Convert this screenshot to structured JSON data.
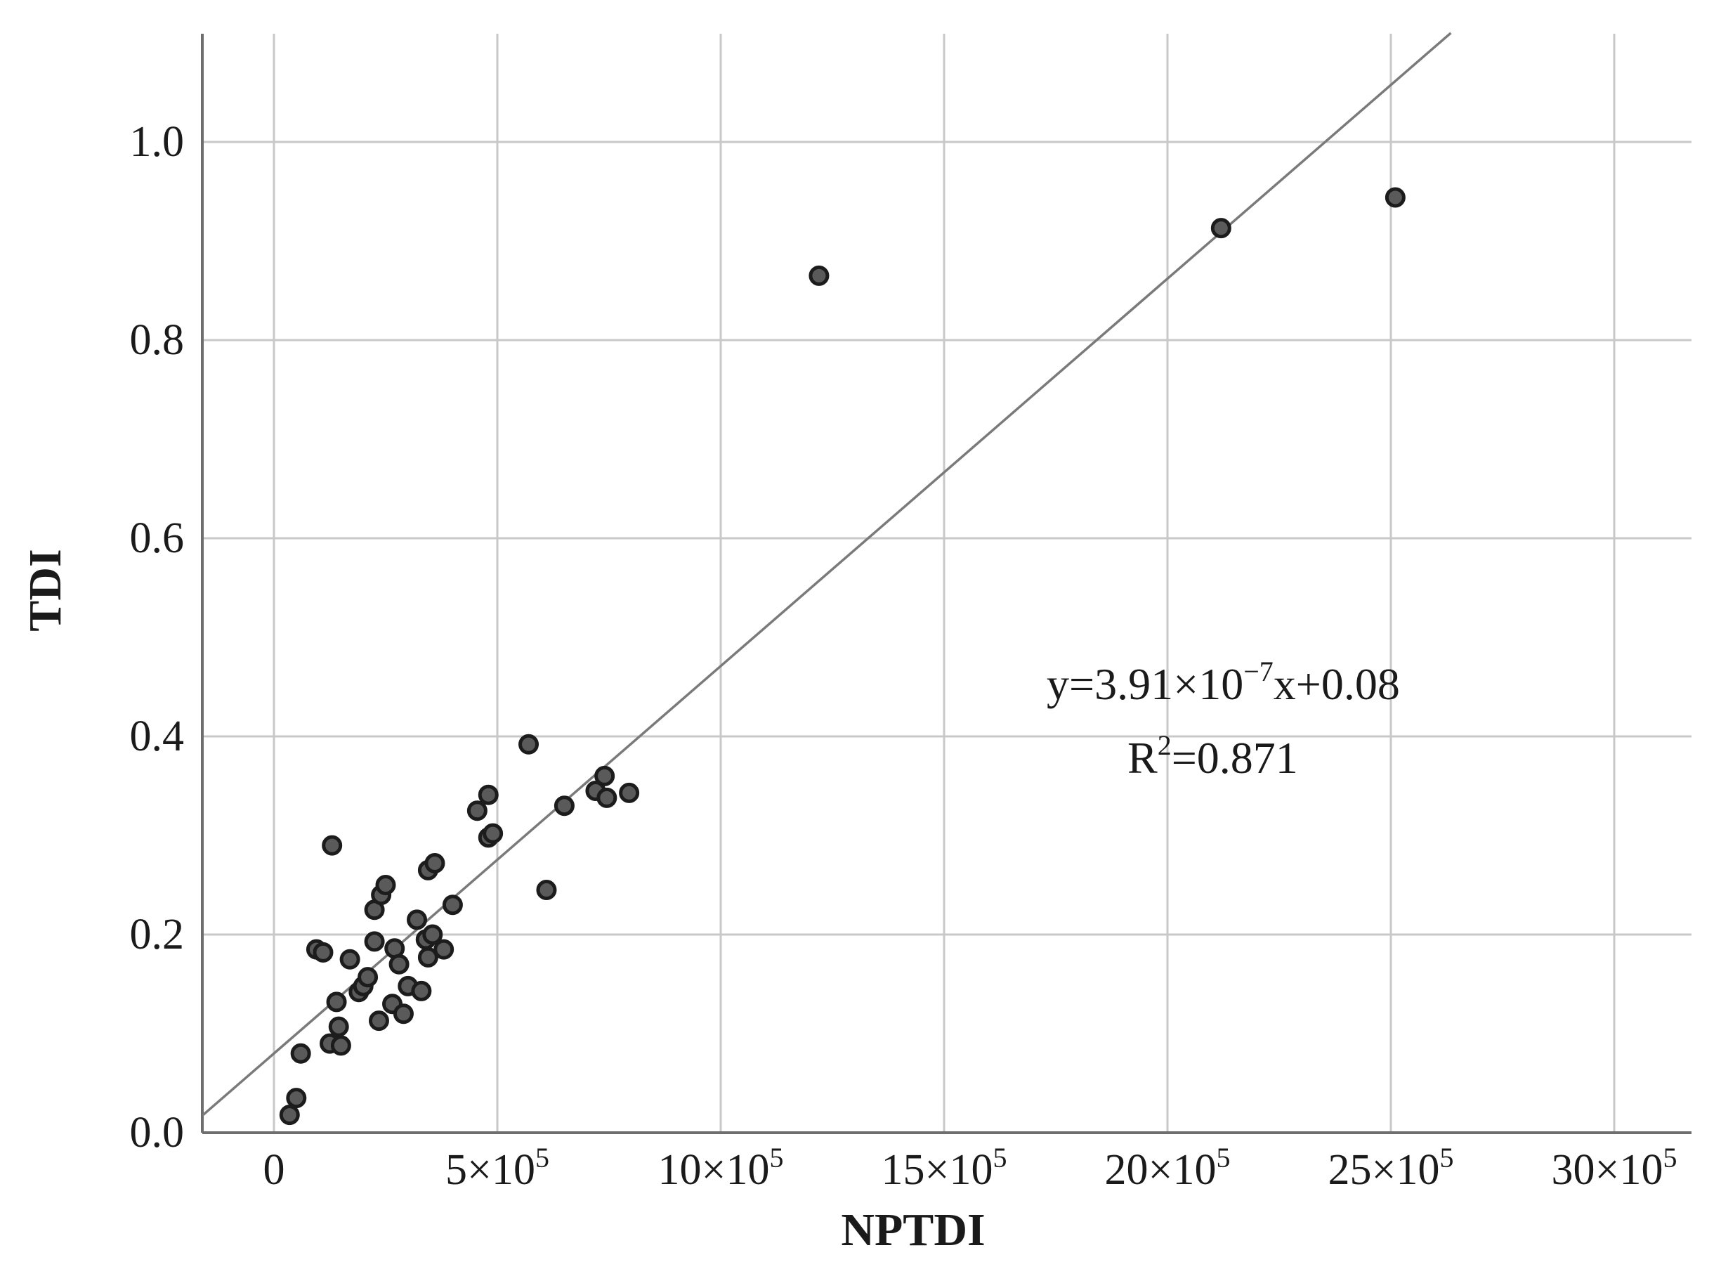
{
  "chart_data": {
    "type": "scatter",
    "title": "",
    "xlabel": "NPTDI",
    "ylabel": "TDI",
    "xlim": [
      -160000,
      3200000
    ],
    "ylim": [
      0,
      1.11
    ],
    "grid": true,
    "x_ticks": [
      {
        "value": 0,
        "label": "0",
        "sup": ""
      },
      {
        "value": 500000,
        "label": "5×10",
        "sup": "5"
      },
      {
        "value": 1000000,
        "label": "10×10",
        "sup": "5"
      },
      {
        "value": 1500000,
        "label": "15×10",
        "sup": "5"
      },
      {
        "value": 2000000,
        "label": "20×10",
        "sup": "5"
      },
      {
        "value": 2500000,
        "label": "25×10",
        "sup": "5"
      },
      {
        "value": 3000000,
        "label": "30×10",
        "sup": "5"
      }
    ],
    "y_ticks": [
      {
        "value": 0.0,
        "label": "0.0"
      },
      {
        "value": 0.2,
        "label": "0.2"
      },
      {
        "value": 0.4,
        "label": "0.4"
      },
      {
        "value": 0.6,
        "label": "0.6"
      },
      {
        "value": 0.8,
        "label": "0.8"
      },
      {
        "value": 1.0,
        "label": "1.0"
      }
    ],
    "points": [
      {
        "x": 35000,
        "y": 0.018
      },
      {
        "x": 50000,
        "y": 0.035
      },
      {
        "x": 60000,
        "y": 0.08
      },
      {
        "x": 95000,
        "y": 0.185
      },
      {
        "x": 110000,
        "y": 0.182
      },
      {
        "x": 130000,
        "y": 0.29
      },
      {
        "x": 125000,
        "y": 0.09
      },
      {
        "x": 145000,
        "y": 0.107
      },
      {
        "x": 150000,
        "y": 0.088
      },
      {
        "x": 140000,
        "y": 0.132
      },
      {
        "x": 170000,
        "y": 0.175
      },
      {
        "x": 190000,
        "y": 0.142
      },
      {
        "x": 200000,
        "y": 0.148
      },
      {
        "x": 210000,
        "y": 0.157
      },
      {
        "x": 225000,
        "y": 0.193
      },
      {
        "x": 225000,
        "y": 0.225
      },
      {
        "x": 240000,
        "y": 0.24
      },
      {
        "x": 250000,
        "y": 0.25
      },
      {
        "x": 235000,
        "y": 0.113
      },
      {
        "x": 265000,
        "y": 0.13
      },
      {
        "x": 270000,
        "y": 0.186
      },
      {
        "x": 280000,
        "y": 0.17
      },
      {
        "x": 290000,
        "y": 0.12
      },
      {
        "x": 300000,
        "y": 0.148
      },
      {
        "x": 320000,
        "y": 0.215
      },
      {
        "x": 330000,
        "y": 0.143
      },
      {
        "x": 345000,
        "y": 0.177
      },
      {
        "x": 340000,
        "y": 0.195
      },
      {
        "x": 355000,
        "y": 0.2
      },
      {
        "x": 345000,
        "y": 0.265
      },
      {
        "x": 360000,
        "y": 0.272
      },
      {
        "x": 380000,
        "y": 0.185
      },
      {
        "x": 400000,
        "y": 0.23
      },
      {
        "x": 455000,
        "y": 0.325
      },
      {
        "x": 480000,
        "y": 0.341
      },
      {
        "x": 480000,
        "y": 0.298
      },
      {
        "x": 490000,
        "y": 0.302
      },
      {
        "x": 570000,
        "y": 0.392
      },
      {
        "x": 610000,
        "y": 0.245
      },
      {
        "x": 650000,
        "y": 0.33
      },
      {
        "x": 720000,
        "y": 0.345
      },
      {
        "x": 740000,
        "y": 0.36
      },
      {
        "x": 745000,
        "y": 0.338
      },
      {
        "x": 795000,
        "y": 0.343
      },
      {
        "x": 1220000,
        "y": 0.865
      },
      {
        "x": 2120000,
        "y": 0.913
      },
      {
        "x": 2510000,
        "y": 0.944
      }
    ],
    "fit_line": {
      "slope": 3.91e-07,
      "intercept": 0.08
    },
    "annotations": {
      "equation_prefix": "y=3.91×10",
      "equation_exp": "−7",
      "equation_suffix": "x+0.08",
      "r2_prefix": "R",
      "r2_exp": "2",
      "r2_suffix": "=0.871"
    }
  }
}
